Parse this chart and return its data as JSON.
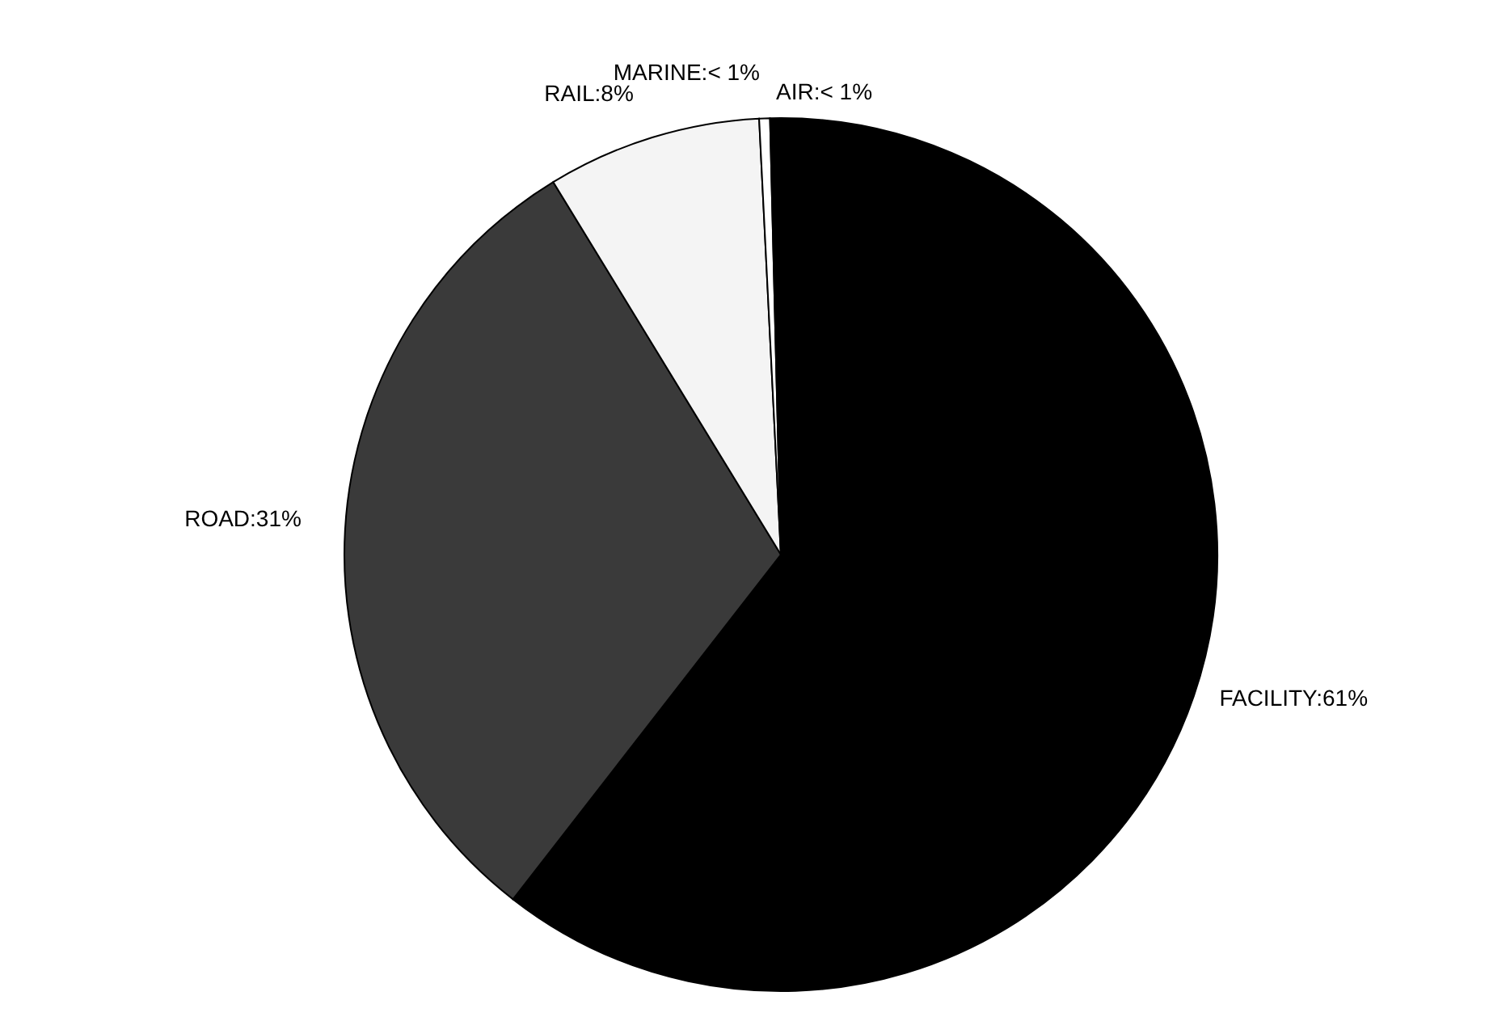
{
  "chart_data": {
    "type": "pie",
    "categories": [
      "FACILITY",
      "ROAD",
      "RAIL",
      "MARINE",
      "AIR"
    ],
    "values": [
      61,
      31,
      8,
      0.4,
      0.4
    ],
    "value_labels": [
      "61%",
      "31%",
      "8%",
      "< 1%",
      "< 1%"
    ],
    "colors": [
      "#000000",
      "#3a3a3a",
      "#f4f4f4",
      "#ffffff",
      "#000000"
    ],
    "legend": false
  }
}
